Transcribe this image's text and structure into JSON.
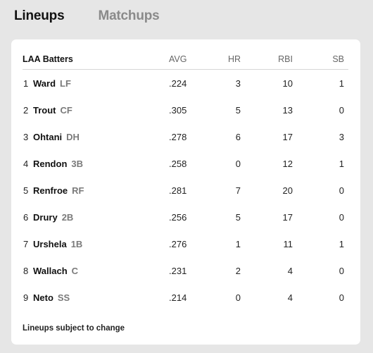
{
  "tabs": [
    {
      "label": "Lineups",
      "active": true
    },
    {
      "label": "Matchups",
      "active": false
    }
  ],
  "table": {
    "team_label": "LAA Batters",
    "columns": {
      "avg": "AVG",
      "hr": "HR",
      "rbi": "RBI",
      "sb": "SB"
    },
    "rows": [
      {
        "order": "1",
        "name": "Ward",
        "pos": "LF",
        "avg": ".224",
        "hr": "3",
        "rbi": "10",
        "sb": "1"
      },
      {
        "order": "2",
        "name": "Trout",
        "pos": "CF",
        "avg": ".305",
        "hr": "5",
        "rbi": "13",
        "sb": "0"
      },
      {
        "order": "3",
        "name": "Ohtani",
        "pos": "DH",
        "avg": ".278",
        "hr": "6",
        "rbi": "17",
        "sb": "3"
      },
      {
        "order": "4",
        "name": "Rendon",
        "pos": "3B",
        "avg": ".258",
        "hr": "0",
        "rbi": "12",
        "sb": "1"
      },
      {
        "order": "5",
        "name": "Renfroe",
        "pos": "RF",
        "avg": ".281",
        "hr": "7",
        "rbi": "20",
        "sb": "0"
      },
      {
        "order": "6",
        "name": "Drury",
        "pos": "2B",
        "avg": ".256",
        "hr": "5",
        "rbi": "17",
        "sb": "0"
      },
      {
        "order": "7",
        "name": "Urshela",
        "pos": "1B",
        "avg": ".276",
        "hr": "1",
        "rbi": "11",
        "sb": "1"
      },
      {
        "order": "8",
        "name": "Wallach",
        "pos": "C",
        "avg": ".231",
        "hr": "2",
        "rbi": "4",
        "sb": "0"
      },
      {
        "order": "9",
        "name": "Neto",
        "pos": "SS",
        "avg": ".214",
        "hr": "0",
        "rbi": "4",
        "sb": "0"
      }
    ]
  },
  "footer_note": "Lineups subject to change",
  "colors": {
    "background": "#e6e6e6",
    "card": "#ffffff",
    "inactive_tab": "#8a8a8a",
    "position_text": "#7a7a7a"
  }
}
